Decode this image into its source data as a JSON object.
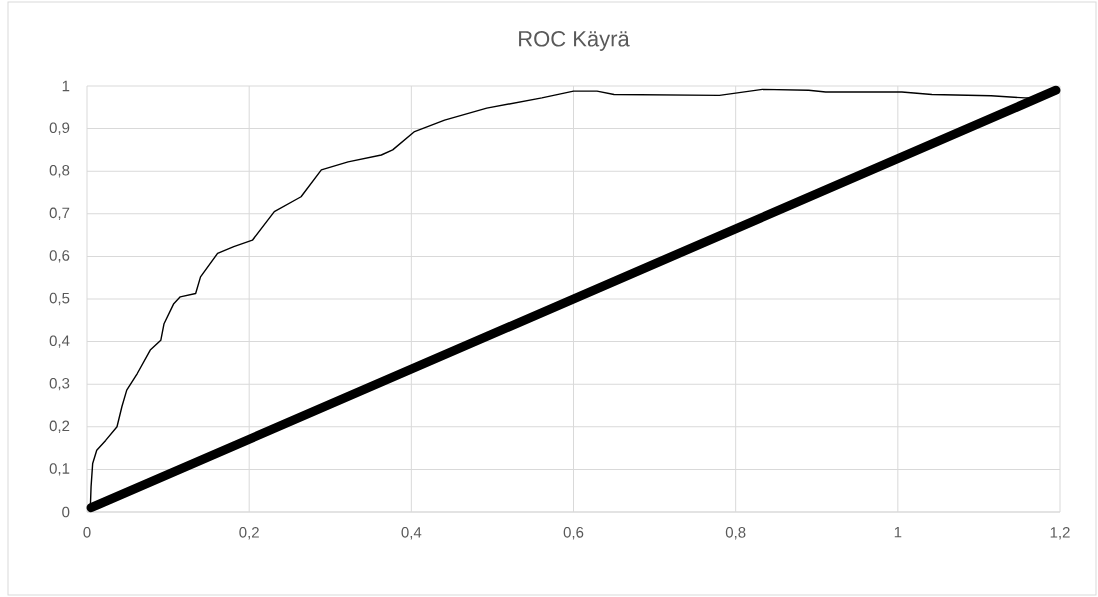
{
  "chart_data": {
    "type": "line",
    "title": "ROC Käyrä",
    "series": [
      {
        "color": "#000000",
        "x": [
          0.004,
          0.005,
          0.007,
          0.012,
          0.023,
          0.037,
          0.043,
          0.049,
          0.062,
          0.078,
          0.091,
          0.095,
          0.107,
          0.115,
          0.134,
          0.14,
          0.161,
          0.181,
          0.204,
          0.231,
          0.264,
          0.289,
          0.322,
          0.363,
          0.377,
          0.404,
          0.441,
          0.493,
          0.561,
          0.6,
          0.629,
          0.65,
          0.78,
          0.833,
          0.89,
          0.911,
          1.005,
          1.042,
          1.115,
          1.157,
          1.18
        ],
        "values": [
          0.004,
          0.059,
          0.114,
          0.145,
          0.168,
          0.2,
          0.247,
          0.286,
          0.325,
          0.38,
          0.403,
          0.442,
          0.489,
          0.505,
          0.513,
          0.552,
          0.607,
          0.623,
          0.638,
          0.705,
          0.74,
          0.803,
          0.822,
          0.838,
          0.85,
          0.893,
          0.92,
          0.948,
          0.972,
          0.988,
          0.988,
          0.98,
          0.978,
          0.992,
          0.99,
          0.986,
          0.986,
          0.98,
          0.977,
          0.972,
          0.972
        ]
      },
      {
        "color": "#000000",
        "x": [
          0.005,
          1.195
        ],
        "values": [
          0.01,
          0.99
        ]
      }
    ],
    "xlim": [
      0,
      1.2
    ],
    "ylim": [
      0,
      1
    ],
    "xticks": [
      0,
      {
        "value": 0.2,
        "label": "0,2"
      },
      {
        "value": 0.4,
        "label": "0,4"
      },
      {
        "value": 0.6,
        "label": "0,6"
      },
      {
        "value": 0.8,
        "label": "0,8"
      },
      1,
      {
        "value": 1.2,
        "label": "1,2"
      }
    ],
    "yticks": [
      0,
      {
        "value": 0.1,
        "label": "0,1"
      },
      {
        "value": 0.2,
        "label": "0,2"
      },
      {
        "value": 0.3,
        "label": "0,3"
      },
      {
        "value": 0.4,
        "label": "0,4"
      },
      {
        "value": 0.5,
        "label": "0,5"
      },
      {
        "value": 0.6,
        "label": "0,6"
      },
      {
        "value": 0.7,
        "label": "0,7"
      },
      {
        "value": 0.8,
        "label": "0,8"
      },
      {
        "value": 0.9,
        "label": "0,9"
      },
      1
    ],
    "grid": true
  }
}
